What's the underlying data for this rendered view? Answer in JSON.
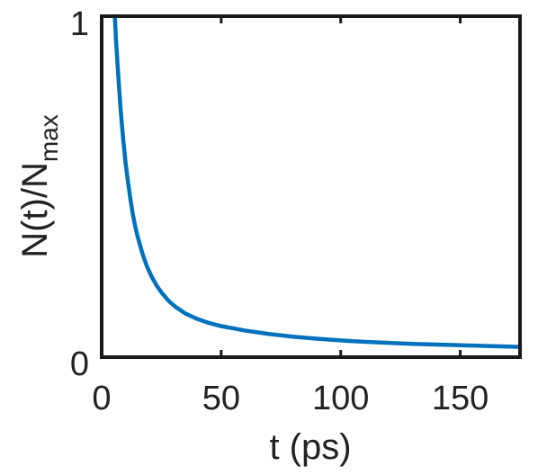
{
  "chart_data": {
    "type": "line",
    "title": "",
    "xlabel": "t (ps)",
    "ylabel": {
      "main": "N(t)/N",
      "subscript": "max"
    },
    "xlim": [
      0,
      175
    ],
    "ylim": [
      0,
      1
    ],
    "x_ticks": [
      0,
      50,
      100,
      150
    ],
    "x_tick_labels": [
      "0",
      "50",
      "100",
      "150"
    ],
    "y_ticks": [
      0,
      1
    ],
    "y_tick_labels": [
      "0",
      "1"
    ],
    "grid": false,
    "series": [
      {
        "color": "#0072BD",
        "x": [
          5.5,
          6,
          7,
          8,
          9,
          10,
          11,
          12,
          13,
          14,
          15,
          17,
          19,
          21,
          23,
          25,
          28,
          31,
          35,
          40,
          45,
          50,
          60,
          70,
          80,
          90,
          100,
          110,
          120,
          130,
          140,
          150,
          160,
          175
        ],
        "y": [
          1.0,
          0.93,
          0.82,
          0.72,
          0.64,
          0.57,
          0.515,
          0.465,
          0.42,
          0.385,
          0.355,
          0.305,
          0.265,
          0.235,
          0.21,
          0.19,
          0.165,
          0.147,
          0.128,
          0.112,
          0.1,
          0.091,
          0.078,
          0.068,
          0.06,
          0.054,
          0.049,
          0.045,
          0.042,
          0.039,
          0.037,
          0.035,
          0.033,
          0.03
        ]
      }
    ]
  }
}
